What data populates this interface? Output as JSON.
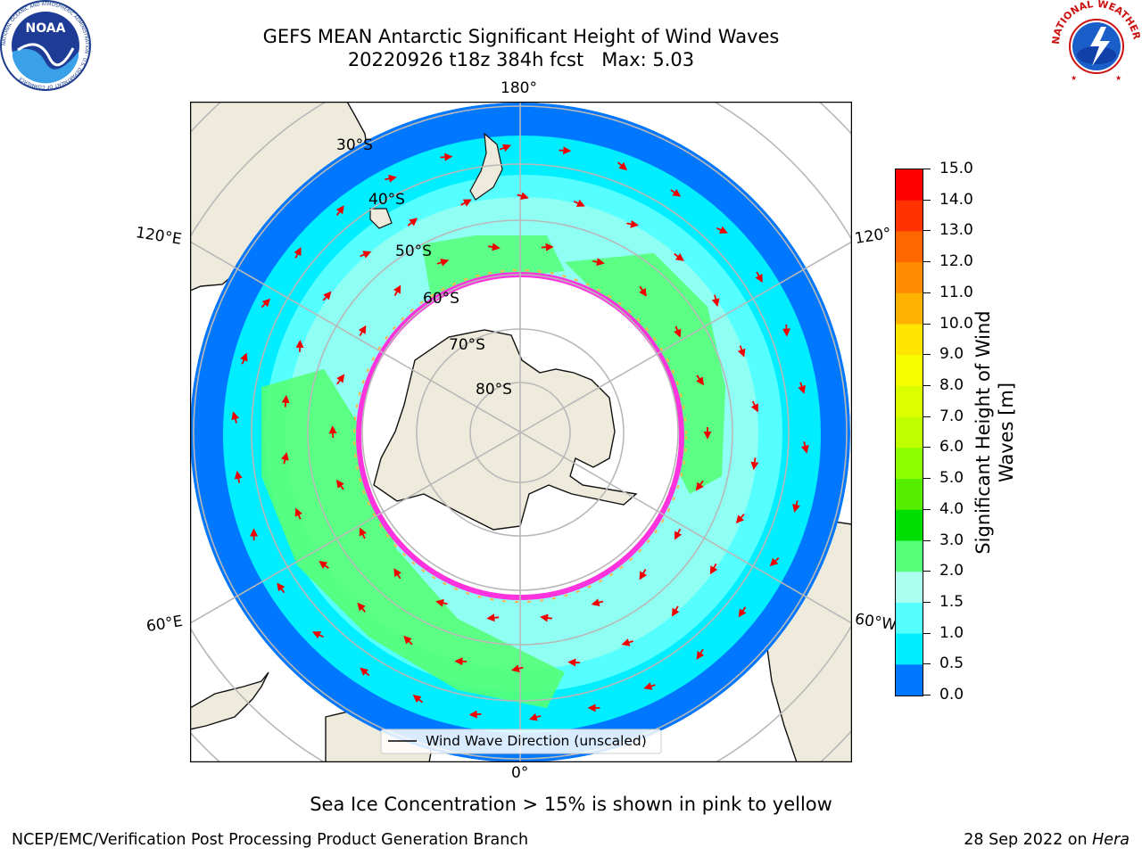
{
  "title": {
    "line1": "GEFS MEAN Antarctic Significant Height of Wind Waves",
    "line2": "20220926 t18z 384h fcst   Max: 5.03"
  },
  "logos": {
    "noara_text": "NOAA",
    "noaa_ring": "NATIONAL OCEANIC AND ATMOSPHERIC ADMINISTRATION · U.S. DEPARTMENT OF COMMERCE",
    "nws_ring": "NATIONAL WEATHER SERVICE"
  },
  "map": {
    "longitude_labels": [
      "180°",
      "120°E",
      "120°",
      "60°E",
      "60°W",
      "0°"
    ],
    "latitude_labels": [
      "30°S",
      "40°S",
      "50°S",
      "60°S",
      "70°S",
      "80°S"
    ],
    "legend": "Wind Wave Direction (unscaled)"
  },
  "colorbar": {
    "label_line1": "Significant Height of Wind",
    "label_line2": "Waves [m]",
    "ticks": [
      "15.0",
      "14.0",
      "13.0",
      "12.0",
      "11.0",
      "10.0",
      "9.0",
      "8.0",
      "7.0",
      "6.0",
      "5.0",
      "4.0",
      "3.0",
      "2.0",
      "1.5",
      "1.0",
      "0.5",
      "0.0"
    ],
    "colors": [
      "#ff0000",
      "#ff3300",
      "#ff6600",
      "#ff8c00",
      "#ffb300",
      "#ffe600",
      "#f5ff00",
      "#dcff00",
      "#bfff00",
      "#8cff00",
      "#55ee00",
      "#00dd00",
      "#55ff77",
      "#aaffee",
      "#55ffff",
      "#00eeff",
      "#0077ff",
      "#0000ff"
    ]
  },
  "caption": "Sea Ice Concentration > 15% is shown in pink to yellow",
  "footer": {
    "left": "NCEP/EMC/Verification Post Processing Product Generation Branch",
    "date": "28 Sep 2022 on ",
    "machine": "Hera"
  }
}
